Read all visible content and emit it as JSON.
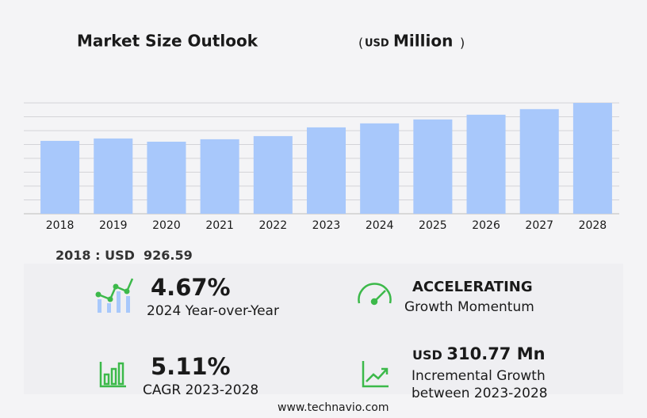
{
  "chart_data": {
    "type": "bar",
    "title": "Market Size Outlook",
    "title_unit": {
      "open": "(",
      "currency": "USD",
      "scale": "Million",
      "close": ")"
    },
    "categories": [
      "2018",
      "2019",
      "2020",
      "2021",
      "2022",
      "2023",
      "2024",
      "2025",
      "2026",
      "2027",
      "2028"
    ],
    "values": [
      926.59,
      957,
      916,
      947,
      987,
      1098,
      1149,
      1199,
      1259,
      1330,
      1409
    ],
    "color": "#a8c8fb",
    "ylim": [
      0,
      1409
    ],
    "grid": true,
    "base_label": "2018 : USD"
  },
  "stats": {
    "yoy": {
      "value": "4.67%",
      "label": "2024 Year-over-Year"
    },
    "momentum": {
      "value": "ACCELERATING",
      "label": "Growth Momentum"
    },
    "cagr": {
      "value": "5.11%",
      "label": "CAGR 2023-2028"
    },
    "incremental": {
      "currency": "USD",
      "value": "310.77 Mn",
      "label": "Incremental Growth",
      "period": "between 2023-2028"
    }
  },
  "footer": "www.technavio.com"
}
